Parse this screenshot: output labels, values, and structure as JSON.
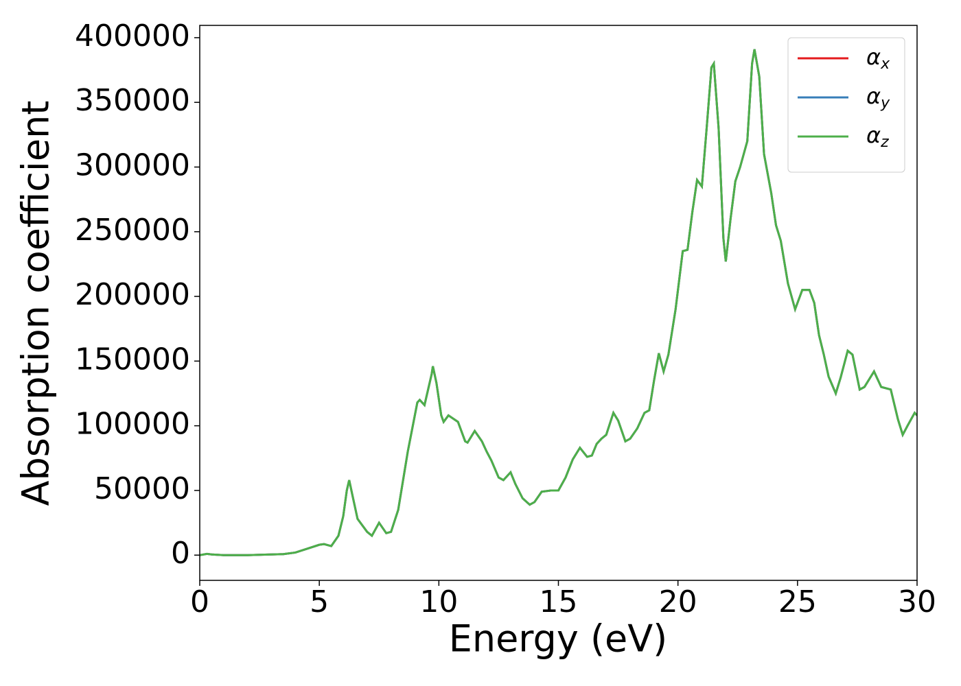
{
  "chart_data": {
    "type": "line",
    "xlabel": "Energy (eV)",
    "ylabel": "Absorption coefficient",
    "x": [
      0,
      0.3,
      0.5,
      1,
      2,
      3,
      3.5,
      4,
      4.5,
      5,
      5.2,
      5.5,
      5.8,
      6,
      6.15,
      6.25,
      6.4,
      6.6,
      7,
      7.2,
      7.5,
      7.8,
      8,
      8.3,
      8.7,
      9.1,
      9.2,
      9.4,
      9.7,
      9.75,
      9.9,
      10.1,
      10.2,
      10.4,
      10.8,
      11.1,
      11.2,
      11.5,
      11.8,
      12,
      12.2,
      12.5,
      12.7,
      13,
      13.2,
      13.5,
      13.8,
      14,
      14.3,
      14.7,
      15,
      15.3,
      15.6,
      15.9,
      16.2,
      16.4,
      16.6,
      16.8,
      17,
      17.3,
      17.5,
      17.8,
      18,
      18.3,
      18.6,
      18.8,
      19,
      19.2,
      19.4,
      19.6,
      19.9,
      20.2,
      20.4,
      20.6,
      20.8,
      21,
      21.2,
      21.4,
      21.5,
      21.7,
      21.9,
      22,
      22.2,
      22.4,
      22.6,
      22.9,
      23.1,
      23.2,
      23.4,
      23.6,
      23.9,
      24.1,
      24.3,
      24.6,
      24.9,
      25.2,
      25.5,
      25.7,
      25.9,
      26.1,
      26.3,
      26.6,
      26.8,
      27.1,
      27.3,
      27.6,
      27.8,
      28.2,
      28.5,
      28.9,
      29.2,
      29.4,
      29.6,
      29.9,
      30
    ],
    "series": [
      {
        "name": "αx",
        "color": "#e41a1c",
        "values": [
          0,
          1000,
          500,
          0,
          0,
          500,
          800,
          2000,
          5000,
          8000,
          8500,
          7000,
          15000,
          30000,
          50000,
          58000,
          45000,
          28000,
          18000,
          15000,
          25000,
          17000,
          18000,
          35000,
          80000,
          118000,
          120000,
          116000,
          140000,
          146000,
          133000,
          108000,
          103000,
          108000,
          103000,
          88000,
          87000,
          96000,
          88000,
          80000,
          73000,
          60000,
          58000,
          64000,
          55000,
          44000,
          39000,
          41000,
          49000,
          50000,
          50000,
          60000,
          74000,
          83000,
          76000,
          77000,
          86000,
          90000,
          93000,
          110000,
          104000,
          88000,
          90000,
          98000,
          110000,
          112000,
          135000,
          156000,
          142000,
          155000,
          190000,
          235000,
          236000,
          265000,
          290000,
          285000,
          330000,
          377000,
          380000,
          330000,
          245000,
          227000,
          260000,
          289000,
          300000,
          320000,
          380000,
          391000,
          370000,
          310000,
          280000,
          255000,
          243000,
          210000,
          190000,
          205000,
          205000,
          195000,
          170000,
          155000,
          138000,
          125000,
          137000,
          158000,
          155000,
          128000,
          130000,
          142000,
          130000,
          128000,
          105000,
          93000,
          100000,
          110000,
          108000
        ]
      },
      {
        "name": "αy",
        "color": "#377eb8",
        "values": [
          0,
          1000,
          500,
          0,
          0,
          500,
          800,
          2000,
          5000,
          8000,
          8500,
          7000,
          15000,
          30000,
          50000,
          58000,
          45000,
          28000,
          18000,
          15000,
          25000,
          17000,
          18000,
          35000,
          80000,
          118000,
          120000,
          116000,
          140000,
          146000,
          133000,
          108000,
          103000,
          108000,
          103000,
          88000,
          87000,
          96000,
          88000,
          80000,
          73000,
          60000,
          58000,
          64000,
          55000,
          44000,
          39000,
          41000,
          49000,
          50000,
          50000,
          60000,
          74000,
          83000,
          76000,
          77000,
          86000,
          90000,
          93000,
          110000,
          104000,
          88000,
          90000,
          98000,
          110000,
          112000,
          135000,
          156000,
          142000,
          155000,
          190000,
          235000,
          236000,
          265000,
          290000,
          285000,
          330000,
          377000,
          380000,
          330000,
          245000,
          227000,
          260000,
          289000,
          300000,
          320000,
          380000,
          391000,
          370000,
          310000,
          280000,
          255000,
          243000,
          210000,
          190000,
          205000,
          205000,
          195000,
          170000,
          155000,
          138000,
          125000,
          137000,
          158000,
          155000,
          128000,
          130000,
          142000,
          130000,
          128000,
          105000,
          93000,
          100000,
          110000,
          108000
        ]
      },
      {
        "name": "αz",
        "color": "#4daf4a",
        "values": [
          0,
          1000,
          500,
          0,
          0,
          500,
          800,
          2000,
          5000,
          8000,
          8500,
          7000,
          15000,
          30000,
          50000,
          58000,
          45000,
          28000,
          18000,
          15000,
          25000,
          17000,
          18000,
          35000,
          80000,
          118000,
          120000,
          116000,
          140000,
          146000,
          133000,
          108000,
          103000,
          108000,
          103000,
          88000,
          87000,
          96000,
          88000,
          80000,
          73000,
          60000,
          58000,
          64000,
          55000,
          44000,
          39000,
          41000,
          49000,
          50000,
          50000,
          60000,
          74000,
          83000,
          76000,
          77000,
          86000,
          90000,
          93000,
          110000,
          104000,
          88000,
          90000,
          98000,
          110000,
          112000,
          135000,
          156000,
          142000,
          155000,
          190000,
          235000,
          236000,
          265000,
          290000,
          285000,
          330000,
          377000,
          380000,
          330000,
          245000,
          227000,
          260000,
          289000,
          300000,
          320000,
          380000,
          391000,
          370000,
          310000,
          280000,
          255000,
          243000,
          210000,
          190000,
          205000,
          205000,
          195000,
          170000,
          155000,
          138000,
          125000,
          137000,
          158000,
          155000,
          128000,
          130000,
          142000,
          130000,
          128000,
          105000,
          93000,
          100000,
          110000,
          108000
        ]
      }
    ],
    "xlim": [
      0,
      30
    ],
    "xticks": [
      0,
      5,
      10,
      15,
      20,
      25,
      30
    ],
    "ylim": [
      -19500,
      409500
    ],
    "yticks": [
      0,
      50000,
      100000,
      150000,
      200000,
      250000,
      300000,
      350000,
      400000
    ],
    "grid": false,
    "legend": "upper right"
  }
}
